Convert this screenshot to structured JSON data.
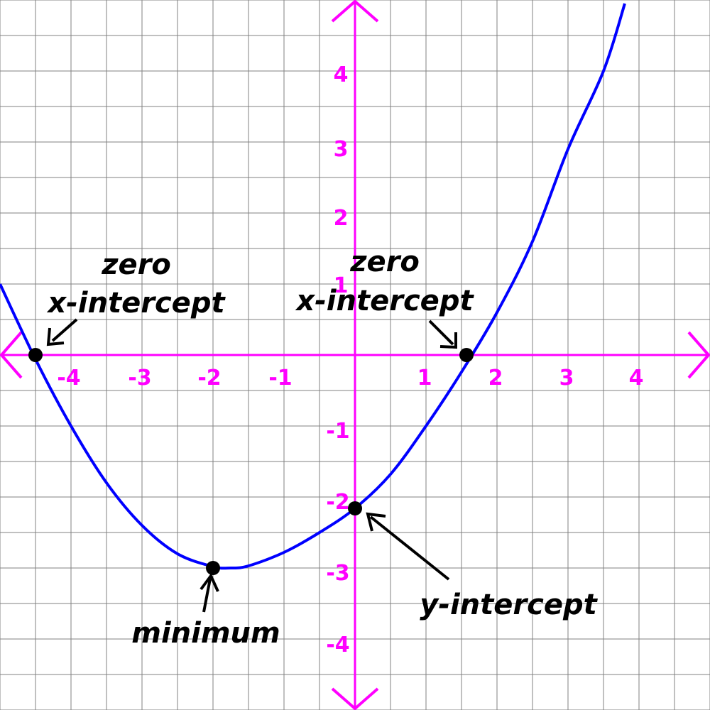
{
  "colors": {
    "background": "#ffffff",
    "grid": "#808080",
    "axis": "#ff00ff",
    "curve": "#0000ff",
    "points": "#000000",
    "annotation": "#000000"
  },
  "chart_data": {
    "type": "line",
    "title": "",
    "xlabel": "",
    "ylabel": "",
    "xlim": [
      -5,
      5
    ],
    "ylim": [
      -5,
      5
    ],
    "grid": true,
    "x_tick_labels": [
      "-4",
      "-3",
      "-2",
      "-1",
      "1",
      "2",
      "3",
      "4"
    ],
    "y_tick_labels": [
      "4",
      "3",
      "2",
      "1",
      "-1",
      "-2",
      "-3",
      "-4"
    ],
    "series": [
      {
        "x": [
          -5.0,
          -4.5,
          -4.0,
          -3.5,
          -3.0,
          -2.5,
          -2.0,
          -1.75,
          -1.5,
          -1.0,
          -0.5,
          0.0,
          0.5,
          1.0,
          1.5,
          2.0,
          2.5,
          3.0,
          3.5,
          3.8
        ],
        "y": [
          1.0,
          -0.06,
          -1.0,
          -1.8,
          -2.4,
          -2.8,
          -2.98,
          -3.0,
          -2.97,
          -2.78,
          -2.5,
          -2.16,
          -1.68,
          -1.0,
          -0.24,
          0.6,
          1.6,
          2.9,
          4.0,
          4.95
        ]
      }
    ],
    "points": [
      {
        "label": "zero",
        "label2": "x-intercept",
        "x": -4.5,
        "y": 0
      },
      {
        "label": "zero",
        "label2": "x-intercept",
        "x": 1.57,
        "y": 0
      },
      {
        "label": "minimum",
        "x": -2.0,
        "y": -3.0
      },
      {
        "label": "y-intercept",
        "x": 0.0,
        "y": -2.16
      }
    ]
  }
}
